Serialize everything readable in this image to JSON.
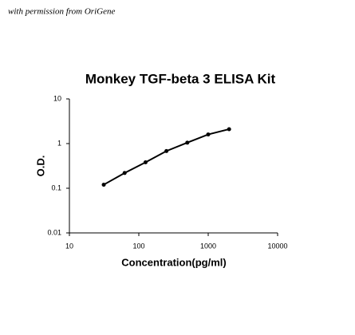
{
  "chart_data": {
    "type": "scatter",
    "annotation": "with permission from OriGene",
    "title": "Monkey TGF-beta 3 ELISA Kit",
    "x_label": "Concentration(pg/ml)",
    "y_label": "O.D.",
    "log_x": true,
    "log_y": true,
    "fit_line": true,
    "series": [
      {
        "color": "#000000",
        "x": [
          31.25,
          62.5,
          125,
          250,
          500,
          1000,
          2000
        ],
        "values": [
          0.12,
          0.22,
          0.38,
          0.68,
          1.05,
          1.6,
          2.1
        ]
      }
    ],
    "xlim": [
      10,
      10000
    ],
    "xticks": [
      10,
      100,
      1000,
      10000
    ],
    "ylim": [
      0.01,
      10
    ],
    "yticks": [
      0.01,
      0.1,
      1,
      10
    ]
  }
}
